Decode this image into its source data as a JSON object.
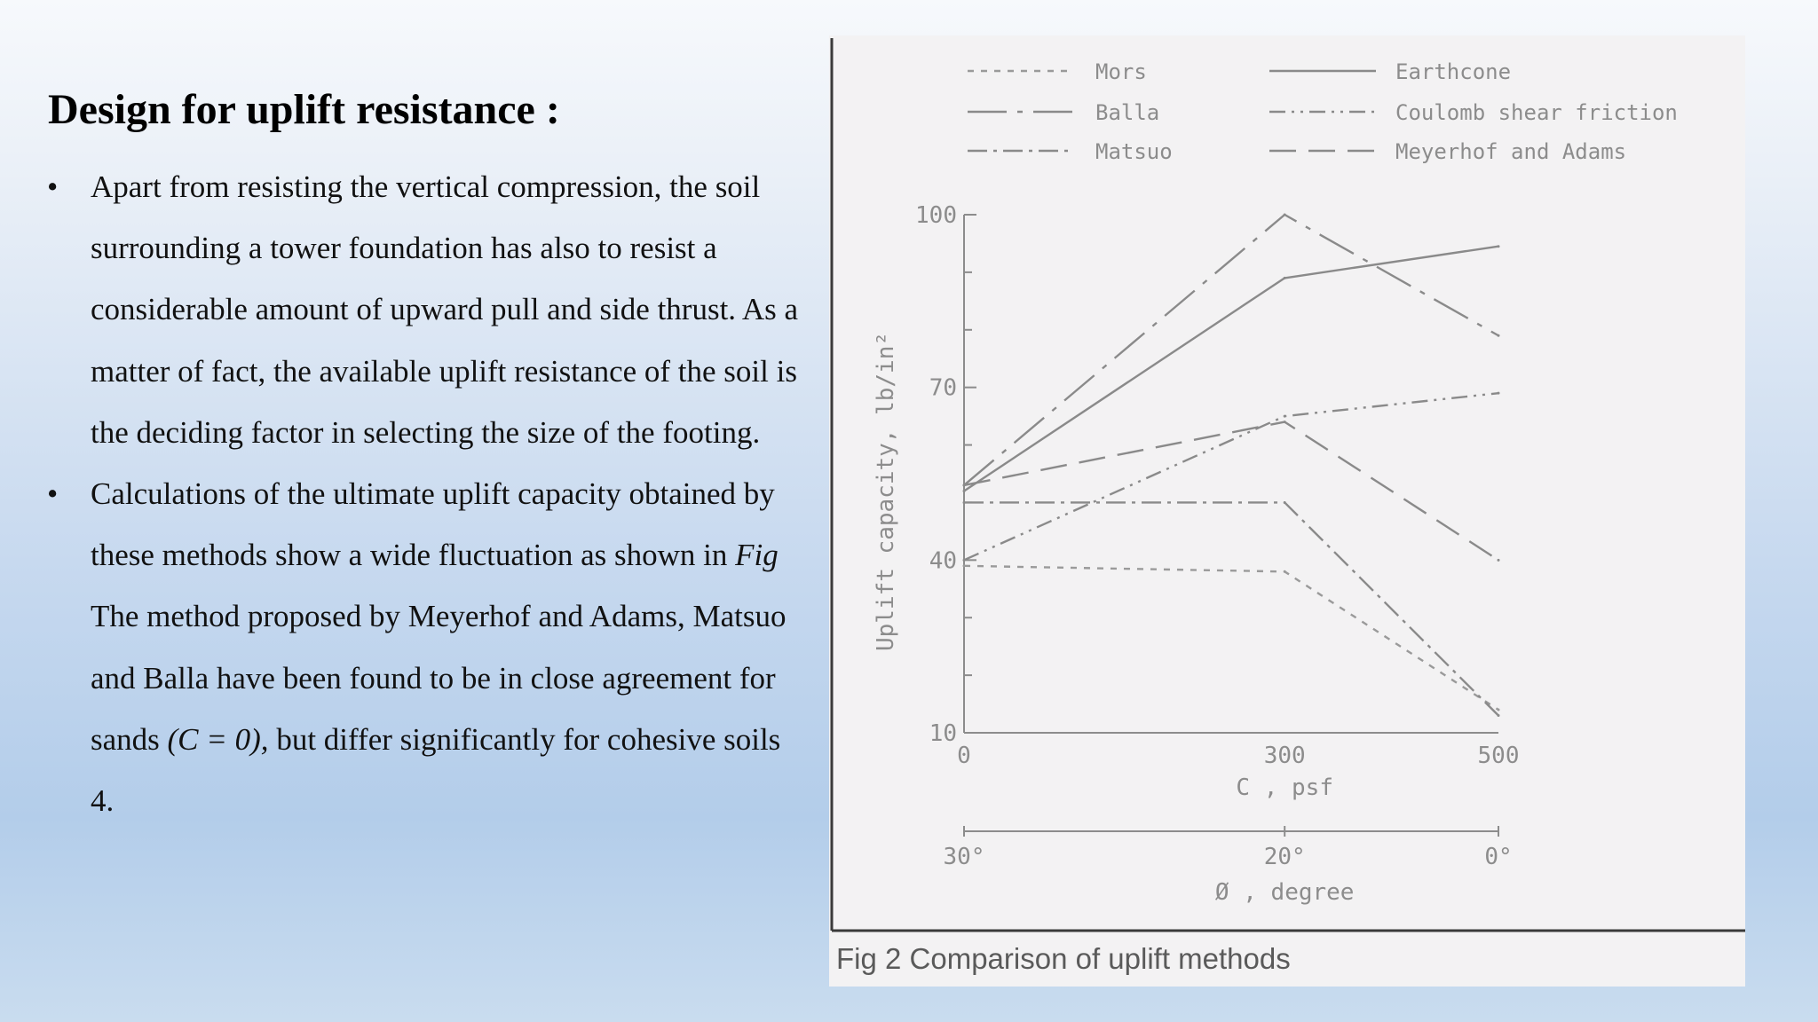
{
  "slide": {
    "title": "Design for uplift resistance :",
    "bullets": [
      {
        "marker": "•",
        "text": "Apart from resisting the vertical compression, the soil surrounding a tower foundation has also to resist a considerable amount of upward pull and side thrust. As a matter of fact, the available uplift resistance of the soil is the deciding factor in selecting the size of the footing."
      },
      {
        "marker": "•",
        "text_before_fig": "Calculations of the ultimate uplift capacity obtained by these methods show a wide fluctuation as shown in ",
        "fig_ref": "Fig",
        "text_after_fig": "  The method proposed by Meyerhof and Adams, Matsuo and Balla have been found to be in close agreement for sands ",
        "italic_clause": "(C = 0),",
        "text_end": " but differ significantly for cohesive soils 4."
      }
    ]
  },
  "figure": {
    "caption": "Fig 2  Comparison of uplift methods"
  },
  "chart_data": {
    "type": "line",
    "xlabel": "C , psf",
    "x_ticks": [
      "0",
      "300",
      "500"
    ],
    "x": [
      0,
      300,
      500
    ],
    "xlim": [
      0,
      500
    ],
    "secondary_xlabel": "Ø , degree",
    "secondary_x_ticks": [
      "30°",
      "20°",
      "0°"
    ],
    "ylabel": "Uplift capacity, lb/in²",
    "y_ticks": [
      "100",
      "70",
      "40",
      "10"
    ],
    "ylim": [
      10,
      100
    ],
    "grid": false,
    "legend_position": "top",
    "series": [
      {
        "name": "Mors",
        "values": [
          39,
          38,
          14
        ],
        "dash": "7,8",
        "color": "#9a9a9a"
      },
      {
        "name": "Earthcone",
        "values": [
          52,
          89,
          94.5
        ],
        "dash": "none",
        "color": "#8a8a8a"
      },
      {
        "name": "Balla",
        "values": [
          53,
          100,
          79
        ],
        "dash": "44,12,6,12",
        "color": "#8a8a8a"
      },
      {
        "name": "Coulomb shear friction",
        "values": [
          40,
          65,
          69
        ],
        "dash": "18,7,3,7,3,7",
        "color": "#8a8a8a"
      },
      {
        "name": "Matsuo",
        "values": [
          50,
          50,
          13
        ],
        "dash": "22,7,4,7",
        "color": "#8a8a8a"
      },
      {
        "name": "Meyerhof and Adams",
        "values": [
          53,
          64,
          40
        ],
        "dash": "30,14",
        "color": "#8a8a8a"
      }
    ]
  }
}
